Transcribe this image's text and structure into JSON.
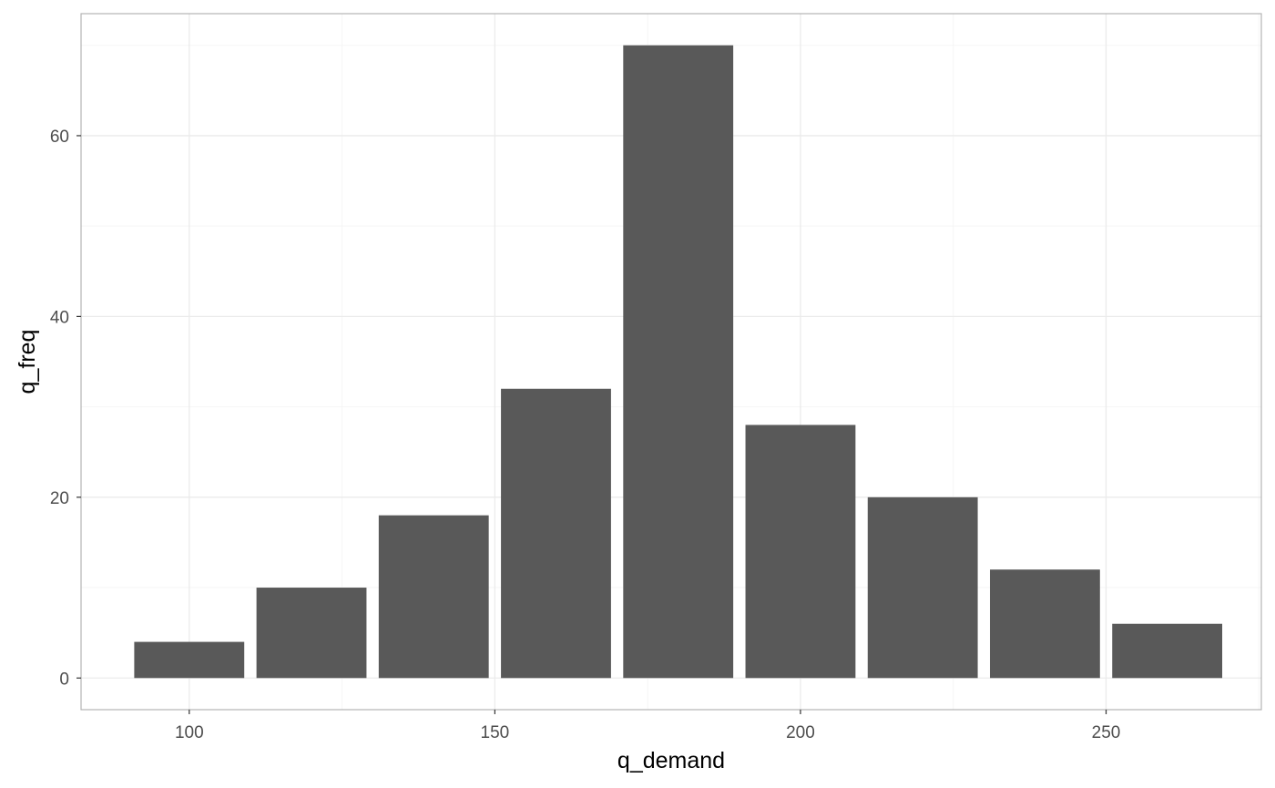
{
  "chart_data": {
    "type": "bar",
    "title": "",
    "xlabel": "q_demand",
    "ylabel": "q_freq",
    "x": [
      100,
      120,
      140,
      160,
      180,
      200,
      220,
      240,
      260
    ],
    "values": [
      4,
      10,
      18,
      32,
      70,
      28,
      20,
      12,
      6
    ],
    "bar_width": 18,
    "xlim": [
      82.3,
      275.4
    ],
    "ylim": [
      -3.5,
      73.5
    ],
    "xticks": [
      100,
      150,
      200,
      250
    ],
    "yticks": [
      0,
      20,
      40,
      60
    ],
    "x_minor": [
      125,
      175,
      225,
      275
    ],
    "y_minor": [
      10,
      30,
      50,
      70
    ],
    "grid": true,
    "legend": "none",
    "colors": {
      "bar": "#595959",
      "grid_major": "#ebebeb",
      "grid_minor": "#f5f5f5",
      "panel_border": "#b3b3b3",
      "tick_label": "#4d4d4d"
    }
  }
}
